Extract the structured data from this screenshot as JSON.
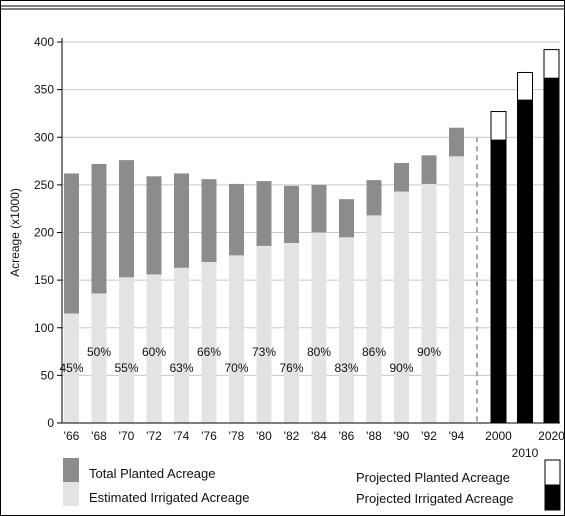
{
  "chart_data": {
    "type": "bar",
    "title": "",
    "xlabel": "",
    "ylabel": "Acreage (x1000)",
    "ylim": [
      0,
      400
    ],
    "yticks": [
      0,
      50,
      100,
      150,
      200,
      250,
      300,
      350,
      400
    ],
    "grid": true,
    "categories": [
      "'66",
      "'68",
      "'70",
      "'72",
      "'74",
      "'76",
      "'78",
      "'80",
      "'82",
      "'84",
      "'86",
      "'88",
      "'90",
      "'92",
      "'94"
    ],
    "series": [
      {
        "name": "Total Planted Acreage",
        "values": [
          262,
          272,
          276,
          259,
          262,
          256,
          251,
          254,
          249,
          250,
          235,
          255,
          273,
          281,
          310
        ]
      },
      {
        "name": "Estimated Irrigated Acreage",
        "values": [
          115,
          136,
          153,
          156,
          163,
          169,
          176,
          186,
          189,
          200,
          195,
          218,
          243,
          251,
          280
        ]
      }
    ],
    "percent_labels": [
      "45%",
      "50%",
      "55%",
      "60%",
      "63%",
      "66%",
      "70%",
      "73%",
      "76%",
      "80%",
      "83%",
      "86%",
      "90%",
      "90%",
      ""
    ],
    "projected": {
      "categories": [
        "2000",
        "2010",
        "2020"
      ],
      "series": [
        {
          "name": "Projected Planted Acreage",
          "values": [
            327,
            368,
            392
          ]
        },
        {
          "name": "Projected Irrigated Acreage",
          "values": [
            297,
            339,
            362
          ]
        }
      ]
    },
    "legend": [
      {
        "label": "Total Planted Acreage",
        "color": "#8c8c8c"
      },
      {
        "label": "Estimated Irrigated Acreage",
        "color": "#e3e3e3"
      },
      {
        "label": "Projected Planted Acreage",
        "color": "#ffffff"
      },
      {
        "label": "Projected Irrigated Acreage",
        "color": "#000000"
      }
    ],
    "legend_position": "bottom",
    "colors": {
      "planted": "#8c8c8c",
      "irrigated": "#e3e3e3",
      "projected_planted": "#ffffff",
      "projected_irrigated": "#000000",
      "grid": "#c8c8c8"
    }
  }
}
